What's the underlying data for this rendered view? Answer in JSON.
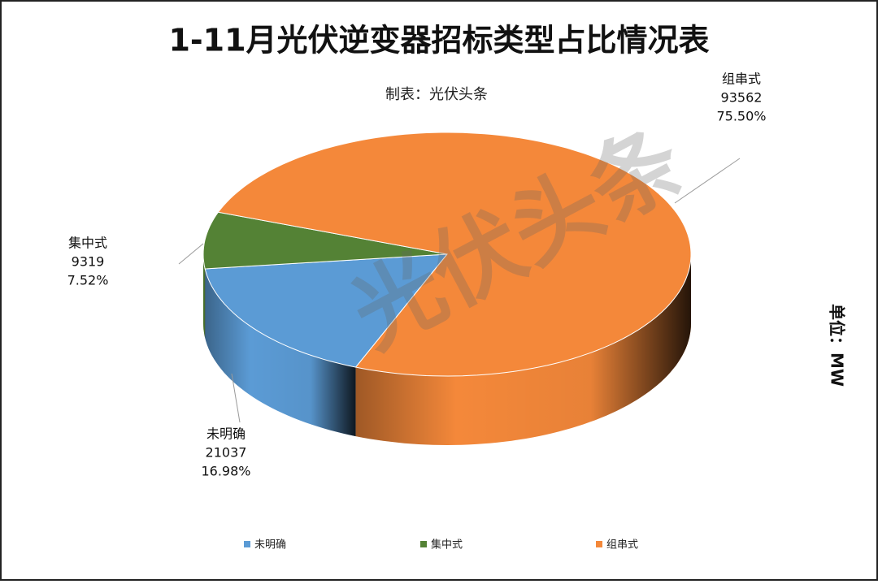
{
  "chart_data": {
    "type": "pie3d",
    "title": "1-11月光伏逆变器招标类型占比情况表",
    "subtitle": "制表：光伏头条",
    "unit": "单位：MW",
    "watermark": "光伏头条",
    "categories": [
      "未明确",
      "集中式",
      "组串式"
    ],
    "values": [
      21037,
      9319,
      93562
    ],
    "percent_labels": [
      "16.98%",
      "7.52%",
      "75.50%"
    ],
    "colors": [
      "#5b9bd5",
      "#548235",
      "#f4883a"
    ]
  }
}
